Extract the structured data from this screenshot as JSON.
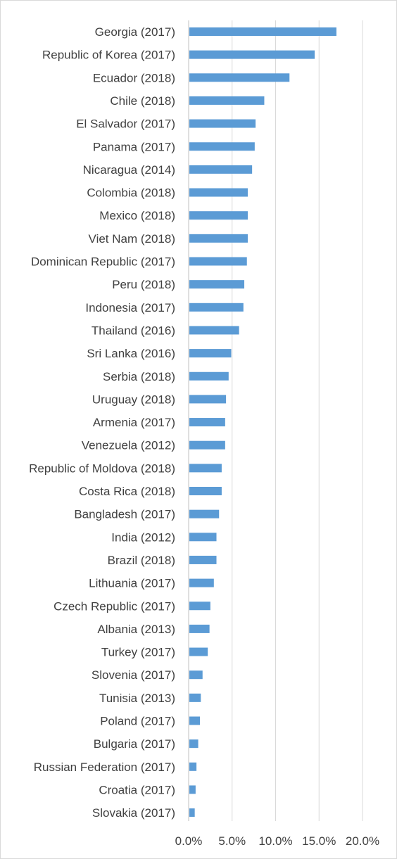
{
  "chart_data": {
    "type": "bar",
    "orientation": "horizontal",
    "categories": [
      "Georgia (2017)",
      "Republic of Korea (2017)",
      "Ecuador (2018)",
      "Chile (2018)",
      "El Salvador (2017)",
      "Panama (2017)",
      "Nicaragua (2014)",
      "Colombia (2018)",
      "Mexico (2018)",
      "Viet Nam (2018)",
      "Dominican Republic (2017)",
      "Peru (2018)",
      "Indonesia (2017)",
      "Thailand (2016)",
      "Sri Lanka (2016)",
      "Serbia (2018)",
      "Uruguay (2018)",
      "Armenia (2017)",
      "Venezuela (2012)",
      "Republic of Moldova (2018)",
      "Costa Rica (2018)",
      "Bangladesh (2017)",
      "India (2012)",
      "Brazil (2018)",
      "Lithuania (2017)",
      "Czech Republic (2017)",
      "Albania (2013)",
      "Turkey (2017)",
      "Slovenia (2017)",
      "Tunisia (2013)",
      "Poland (2017)",
      "Bulgaria (2017)",
      "Russian Federation (2017)",
      "Croatia (2017)",
      "Slovakia (2017)"
    ],
    "values": [
      17.0,
      14.5,
      11.6,
      8.7,
      7.7,
      7.6,
      7.3,
      6.8,
      6.8,
      6.8,
      6.7,
      6.4,
      6.3,
      5.8,
      4.9,
      4.6,
      4.3,
      4.2,
      4.2,
      3.8,
      3.8,
      3.5,
      3.2,
      3.2,
      2.9,
      2.5,
      2.4,
      2.2,
      1.6,
      1.4,
      1.3,
      1.1,
      0.9,
      0.8,
      0.7
    ],
    "value_unit": "%",
    "xlim": [
      0,
      20
    ],
    "xticks": [
      0,
      5,
      10,
      15,
      20
    ],
    "xtick_labels": [
      "0.0%",
      "5.0%",
      "10.0%",
      "15.0%",
      "20.0%"
    ],
    "grid": true,
    "bar_color": "#5b9bd5",
    "title": "",
    "xlabel": "",
    "ylabel": ""
  }
}
